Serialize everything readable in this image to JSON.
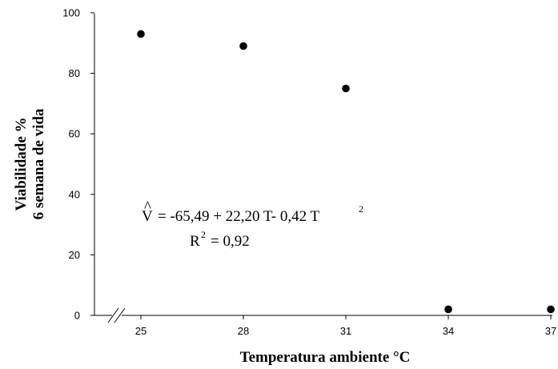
{
  "chart_data": {
    "type": "scatter",
    "xlabel": "Temperatura ambiente °C",
    "ylabel_line1": "Viabilidade %",
    "ylabel_line2": "6 semana de  vida",
    "x_ticks": [
      "25",
      "28",
      "31",
      "34",
      "37"
    ],
    "y_ticks": [
      "0",
      "20",
      "40",
      "60",
      "80",
      "100"
    ],
    "xlim": [
      25,
      37
    ],
    "ylim": [
      0,
      100
    ],
    "axis_break": true,
    "grid": false,
    "points": [
      {
        "x": 25,
        "y": 93
      },
      {
        "x": 28,
        "y": 89
      },
      {
        "x": 31,
        "y": 75
      },
      {
        "x": 34,
        "y": 2
      },
      {
        "x": 37,
        "y": 2
      }
    ],
    "fit": {
      "a": -65.49,
      "b": 22.2,
      "c": -0.42,
      "x_start": 25
    },
    "equation": {
      "v_symbol": "V",
      "v_hat": "^",
      "rhs": "= -65,49 + 22,20 T- 0,42 T",
      "rhs_exp": "2",
      "r_base": "R",
      "r_exp": "2",
      "r_value": "= 0,92"
    }
  }
}
